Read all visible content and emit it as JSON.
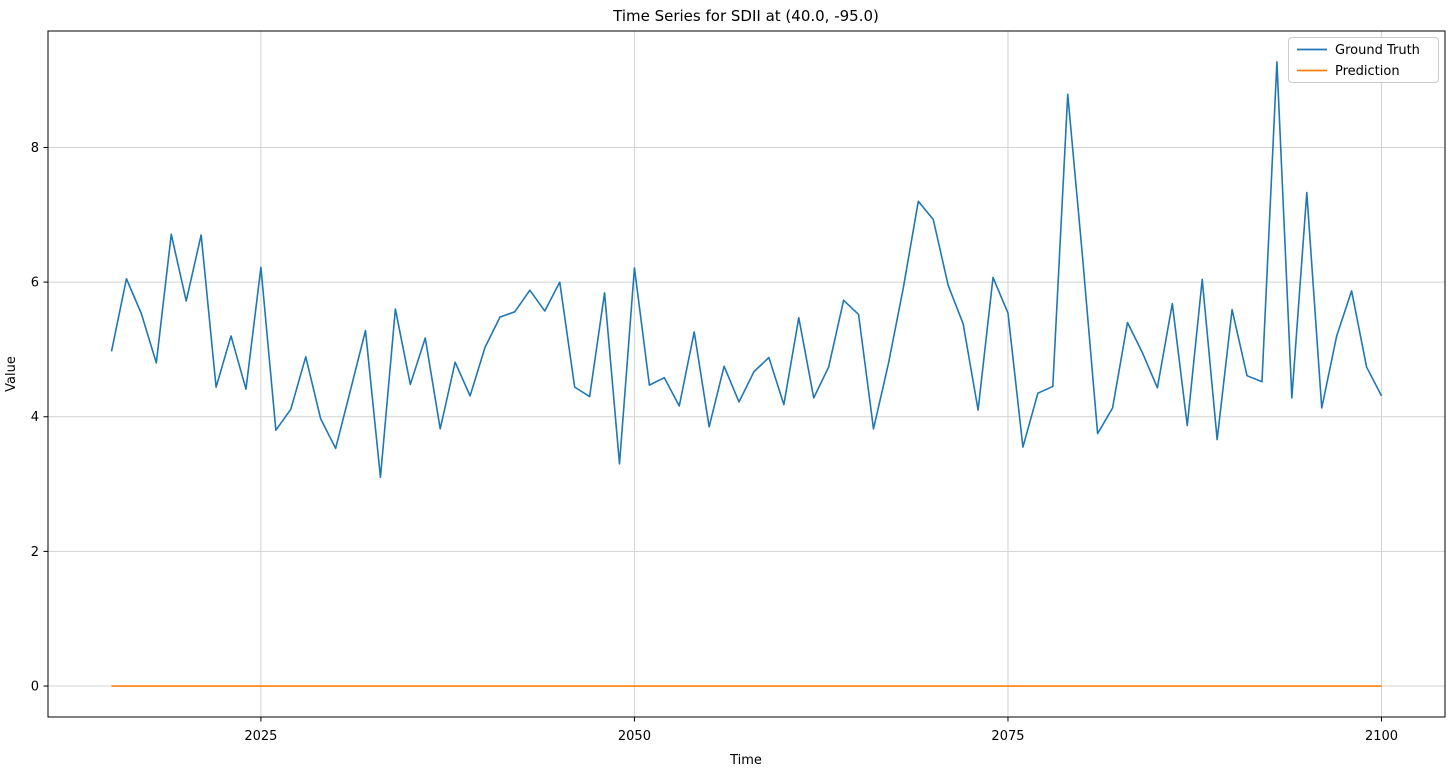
{
  "figure": {
    "title": "Time Series for SDII at (40.0, -95.0)",
    "xlabel": "Time",
    "ylabel": "Value"
  },
  "legend": {
    "items": [
      {
        "label": "Ground Truth",
        "color": "#1f77b4"
      },
      {
        "label": "Prediction",
        "color": "#ff7f0e"
      }
    ]
  },
  "colors": {
    "ground_truth": "#1f77b4",
    "prediction": "#ff7f0e",
    "grid": "#d3d3d3",
    "spine": "#000000"
  },
  "chart_data": {
    "type": "line",
    "title": "Time Series for SDII at (40.0, -95.0)",
    "xlabel": "Time",
    "ylabel": "Value",
    "grid": true,
    "legend_position": "upper right",
    "xticks": [
      2025,
      2050,
      2075,
      2100
    ],
    "yticks": [
      0,
      2,
      4,
      6,
      8
    ],
    "xlim": [
      2010.75,
      2104.25
    ],
    "ylim": [
      -0.46,
      9.73
    ],
    "x": [
      2015,
      2016,
      2017,
      2018,
      2019,
      2020,
      2021,
      2022,
      2023,
      2024,
      2025,
      2026,
      2027,
      2028,
      2029,
      2030,
      2031,
      2032,
      2033,
      2034,
      2035,
      2036,
      2037,
      2038,
      2039,
      2040,
      2041,
      2042,
      2043,
      2044,
      2045,
      2046,
      2047,
      2048,
      2049,
      2050,
      2051,
      2052,
      2053,
      2054,
      2055,
      2056,
      2057,
      2058,
      2059,
      2060,
      2061,
      2062,
      2063,
      2064,
      2065,
      2066,
      2067,
      2068,
      2069,
      2070,
      2071,
      2072,
      2073,
      2074,
      2075,
      2076,
      2077,
      2078,
      2079,
      2080,
      2081,
      2082,
      2083,
      2084,
      2085,
      2086,
      2087,
      2088,
      2089,
      2090,
      2091,
      2092,
      2093,
      2094,
      2095,
      2096,
      2097,
      2098,
      2099,
      2100
    ],
    "series": [
      {
        "name": "Ground Truth",
        "color": "#1f77b4",
        "values": [
          4.97,
          6.05,
          5.53,
          4.8,
          6.71,
          5.72,
          6.7,
          4.44,
          5.2,
          4.41,
          6.22,
          3.8,
          4.11,
          4.89,
          3.97,
          3.53,
          4.4,
          5.28,
          3.1,
          5.6,
          4.48,
          5.17,
          3.82,
          4.81,
          4.31,
          5.03,
          5.48,
          5.56,
          5.88,
          5.57,
          6.0,
          4.44,
          4.3,
          5.84,
          3.3,
          6.21,
          4.47,
          4.58,
          4.16,
          5.26,
          3.85,
          4.75,
          4.22,
          4.67,
          4.88,
          4.18,
          5.47,
          4.28,
          4.74,
          5.73,
          5.52,
          3.82,
          4.79,
          5.92,
          7.2,
          6.93,
          5.95,
          5.38,
          4.1,
          6.07,
          5.54,
          3.55,
          4.35,
          4.45,
          8.79,
          6.35,
          3.75,
          4.13,
          5.4,
          4.95,
          4.43,
          5.68,
          3.87,
          6.04,
          3.66,
          5.59,
          4.61,
          4.52,
          9.27,
          4.28,
          7.33,
          4.13,
          5.2,
          5.87,
          4.74,
          4.31
        ]
      },
      {
        "name": "Prediction",
        "color": "#ff7f0e",
        "values": [
          0,
          0,
          0,
          0,
          0,
          0,
          0,
          0,
          0,
          0,
          0,
          0,
          0,
          0,
          0,
          0,
          0,
          0,
          0,
          0,
          0,
          0,
          0,
          0,
          0,
          0,
          0,
          0,
          0,
          0,
          0,
          0,
          0,
          0,
          0,
          0,
          0,
          0,
          0,
          0,
          0,
          0,
          0,
          0,
          0,
          0,
          0,
          0,
          0,
          0,
          0,
          0,
          0,
          0,
          0,
          0,
          0,
          0,
          0,
          0,
          0,
          0,
          0,
          0,
          0,
          0,
          0,
          0,
          0,
          0,
          0,
          0,
          0,
          0,
          0,
          0,
          0,
          0,
          0,
          0,
          0,
          0,
          0,
          0,
          0,
          0
        ]
      }
    ]
  }
}
